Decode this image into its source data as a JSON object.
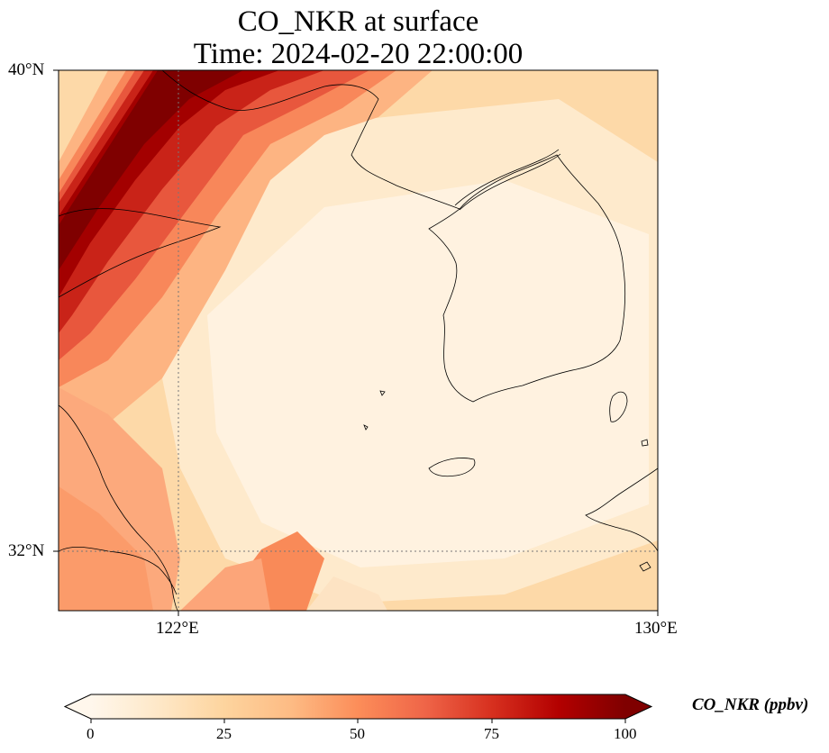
{
  "figure": {
    "title_line1": "CO_NKR at surface",
    "title_line2": "Time: 2024-02-20 22:00:00"
  },
  "axes": {
    "lon_ticks": [
      "122°E",
      "130°E"
    ],
    "lat_ticks": [
      "40°N",
      "32°N"
    ],
    "gridlines": "dotted"
  },
  "colorbar": {
    "label": "CO_NKR (ppbv)",
    "ticks": [
      "0",
      "25",
      "50",
      "75",
      "100"
    ],
    "range": [
      0,
      100
    ],
    "extend": "both",
    "colormap": "OrRd",
    "colors": [
      "#fff7ec",
      "#fee8c8",
      "#fdd49e",
      "#fdbb84",
      "#fc8d59",
      "#ef6548",
      "#d7301f",
      "#b30000",
      "#7f0000"
    ]
  },
  "map": {
    "extent": {
      "lon": [
        120,
        130
      ],
      "lat": [
        31,
        40
      ]
    },
    "field": "CO_NKR",
    "level": "surface"
  }
}
